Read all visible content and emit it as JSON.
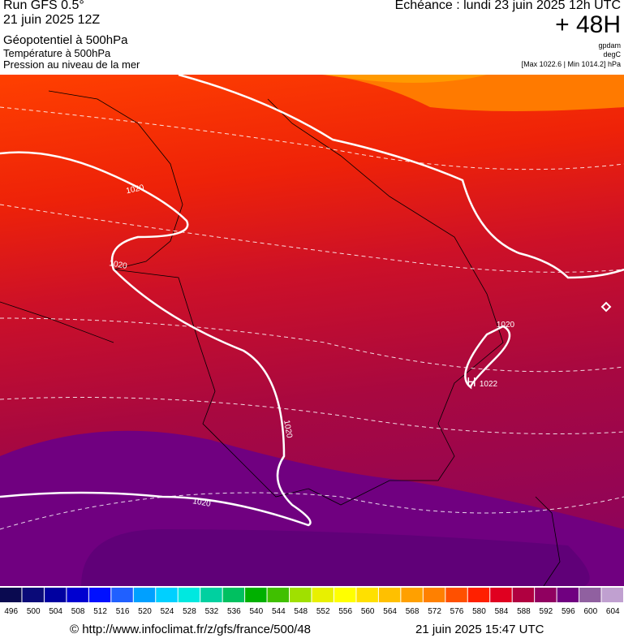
{
  "header": {
    "run": "Run GFS 0.5°",
    "run_date": "21 juin 2025 12Z",
    "field_main": "Géopotentiel à 500hPa",
    "field_temp": "Température à 500hPa",
    "field_pressure": "Pression au niveau de la mer",
    "forecast": "Echéance : lundi 23 juin 2025 12h UTC",
    "lead": "+ 48H",
    "unit_geo": "gpdam",
    "unit_temp": "degC",
    "pressure_range": "[Max 1022.6 | Min 1014.2] hPa"
  },
  "map": {
    "isobar_labels": [
      "1020",
      "1020",
      "1020",
      "1020",
      "1020",
      "1022"
    ],
    "high_marker": "H"
  },
  "legend": {
    "items": [
      {
        "value": 496,
        "color": "#0a0a50"
      },
      {
        "value": 500,
        "color": "#0a0a78"
      },
      {
        "value": 504,
        "color": "#0000a0"
      },
      {
        "value": 508,
        "color": "#0000d0"
      },
      {
        "value": 512,
        "color": "#0010ff"
      },
      {
        "value": 516,
        "color": "#2060ff"
      },
      {
        "value": 520,
        "color": "#00a0ff"
      },
      {
        "value": 524,
        "color": "#00d0ff"
      },
      {
        "value": 528,
        "color": "#00e8e0"
      },
      {
        "value": 532,
        "color": "#00d0a0"
      },
      {
        "value": 536,
        "color": "#00c060"
      },
      {
        "value": 540,
        "color": "#00b000"
      },
      {
        "value": 544,
        "color": "#40c000"
      },
      {
        "value": 548,
        "color": "#a0e000"
      },
      {
        "value": 552,
        "color": "#e8f000"
      },
      {
        "value": 556,
        "color": "#ffff00"
      },
      {
        "value": 560,
        "color": "#ffe000"
      },
      {
        "value": 564,
        "color": "#ffc000"
      },
      {
        "value": 568,
        "color": "#ffa000"
      },
      {
        "value": 572,
        "color": "#ff8000"
      },
      {
        "value": 576,
        "color": "#ff5000"
      },
      {
        "value": 580,
        "color": "#ff2000"
      },
      {
        "value": 584,
        "color": "#e00020"
      },
      {
        "value": 588,
        "color": "#b00040"
      },
      {
        "value": 592,
        "color": "#900060"
      },
      {
        "value": 596,
        "color": "#700080"
      },
      {
        "value": 600,
        "color": "#9060a0"
      },
      {
        "value": 604,
        "color": "#c0a0d0"
      }
    ]
  },
  "footer": {
    "source": "© http://www.infoclimat.fr/z/gfs/france/500/48",
    "generated": "21 juin 2025 15:47 UTC"
  }
}
